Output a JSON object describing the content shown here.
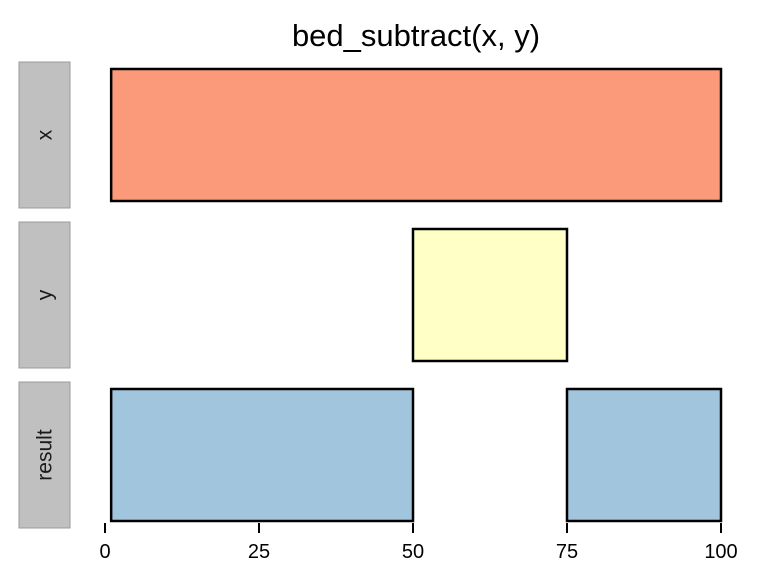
{
  "chart_data": {
    "type": "bar",
    "title": "bed_subtract(x, y)",
    "xlabel": "",
    "ylabel": "",
    "xlim": [
      0,
      100
    ],
    "x_ticks": [
      0,
      25,
      50,
      75,
      100
    ],
    "grid": false,
    "legend": "none",
    "panels": [
      {
        "label": "x",
        "color": "#FB9A7A",
        "intervals": [
          {
            "start": 1,
            "end": 100
          }
        ]
      },
      {
        "label": "y",
        "color": "#FFFFC6",
        "intervals": [
          {
            "start": 50,
            "end": 75
          }
        ]
      },
      {
        "label": "result",
        "color": "#A2C5DE",
        "intervals": [
          {
            "start": 1,
            "end": 50
          },
          {
            "start": 75,
            "end": 100
          }
        ]
      }
    ]
  },
  "colors": {
    "strip_fill": "#C0C0C0",
    "strip_border": "#9a9a9a",
    "outline": "#000000"
  }
}
